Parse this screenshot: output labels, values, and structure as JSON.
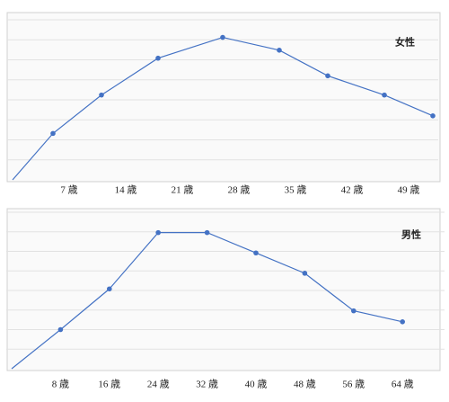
{
  "chart_data": [
    {
      "type": "line",
      "x": [
        0,
        5,
        11,
        18,
        26,
        33,
        39,
        46,
        52
      ],
      "series": [
        {
          "name": "女性",
          "color": "#4472c4",
          "values": [
            0,
            29,
            53,
            76,
            89,
            81,
            65,
            53,
            40
          ]
        }
      ],
      "xlim": [
        0,
        52
      ],
      "xticks": [
        {
          "value": 7,
          "label": "7 歳"
        },
        {
          "value": 14,
          "label": "14 歳"
        },
        {
          "value": 21,
          "label": "21 歳"
        },
        {
          "value": 28,
          "label": "28 歳"
        },
        {
          "value": 35,
          "label": "35 歳"
        },
        {
          "value": 42,
          "label": "42 歳"
        },
        {
          "value": 49,
          "label": "49 歳"
        }
      ],
      "ylim": [
        0,
        100
      ],
      "yticks": [
        12.5,
        25,
        37.5,
        50,
        62.5,
        75,
        87.5,
        100
      ],
      "grid": true,
      "legend": "upper right"
    },
    {
      "type": "line",
      "x": [
        0,
        8,
        16,
        24,
        32,
        40,
        48,
        56,
        64
      ],
      "series": [
        {
          "name": "男性",
          "color": "#4472c4",
          "values": [
            0,
            25,
            51,
            87,
            87,
            74,
            61,
            37,
            30
          ]
        }
      ],
      "xlim": [
        0,
        70
      ],
      "xticks": [
        {
          "value": 8,
          "label": "8 歳"
        },
        {
          "value": 16,
          "label": "16 歳"
        },
        {
          "value": 24,
          "label": "24 歳"
        },
        {
          "value": 32,
          "label": "32 歳"
        },
        {
          "value": 40,
          "label": "40 歳"
        },
        {
          "value": 48,
          "label": "48 歳"
        },
        {
          "value": 56,
          "label": "56 歳"
        },
        {
          "value": 64,
          "label": "64 歳"
        }
      ],
      "ylim": [
        0,
        100
      ],
      "yticks": [
        12.5,
        25,
        37.5,
        50,
        62.5,
        75,
        87.5,
        100
      ],
      "grid": true,
      "legend": "upper right"
    }
  ]
}
